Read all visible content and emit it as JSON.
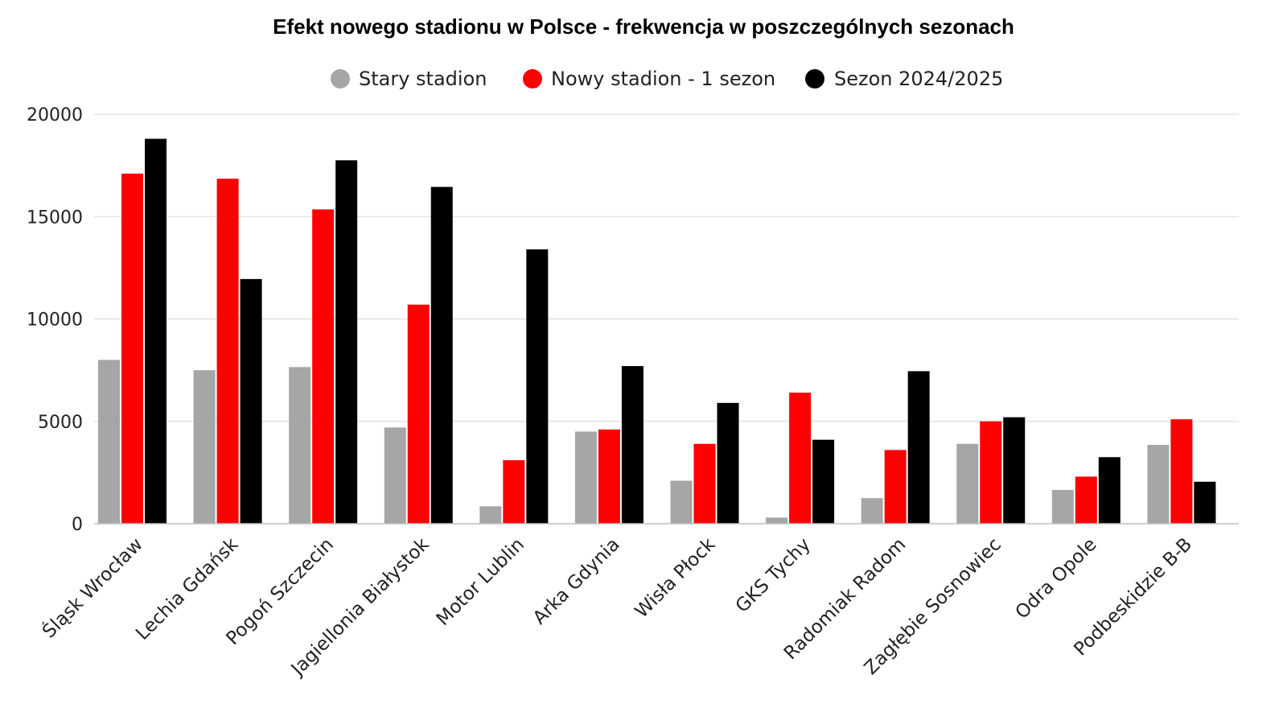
{
  "chart_data": {
    "type": "bar",
    "title": "Efekt nowego stadionu w Polsce - frekwencja w poszczególnych sezonach",
    "xlabel": "",
    "ylabel": "",
    "ylim": [
      0,
      20000
    ],
    "yticks": [
      "0",
      "5000",
      "10000",
      "15000",
      "20000"
    ],
    "legend_position": "top-center",
    "grid": true,
    "categories": [
      "Śląsk Wrocław",
      "Lechia Gdańsk",
      "Pogoń Szczecin",
      "Jagiellonia Białystok",
      "Motor Lublin",
      "Arka Gdynia",
      "Wisła Płock",
      "GKS Tychy",
      "Radomiak Radom",
      "Zagłębie Sosnowiec",
      "Odra Opole",
      "Podbeskidzie B-B"
    ],
    "series": [
      {
        "name": "Stary stadion",
        "color": "#a6a6a6",
        "values": [
          8000,
          7500,
          7650,
          4700,
          850,
          4500,
          2100,
          300,
          1250,
          3900,
          1650,
          3850
        ]
      },
      {
        "name": "Nowy stadion - 1 sezon",
        "color": "#ff0000",
        "values": [
          17100,
          16850,
          15350,
          10700,
          3100,
          4600,
          3900,
          6400,
          3600,
          5000,
          2300,
          5100
        ]
      },
      {
        "name": "Sezon 2024/2025",
        "color": "#000000",
        "values": [
          18800,
          11950,
          17750,
          16450,
          13400,
          7700,
          5900,
          4100,
          7450,
          5200,
          3250,
          2050
        ]
      }
    ]
  }
}
